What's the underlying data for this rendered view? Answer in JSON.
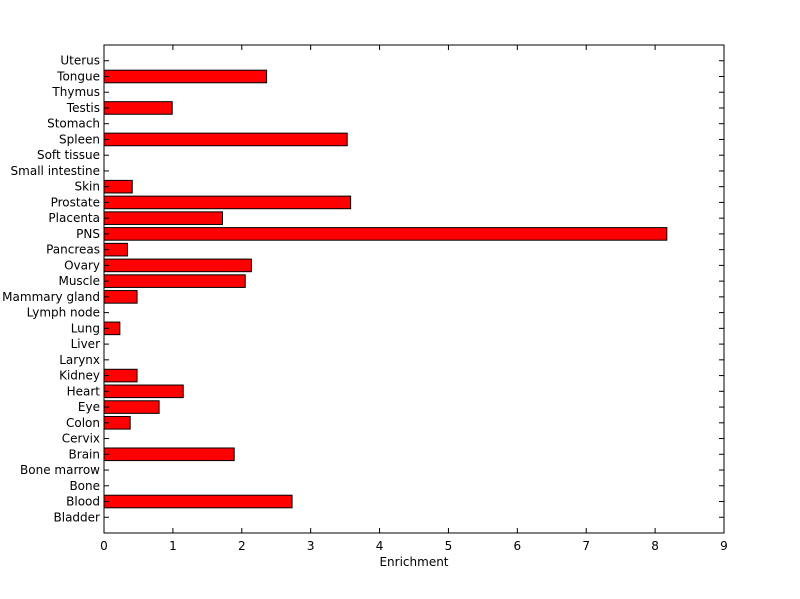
{
  "chart_data": {
    "type": "bar",
    "orientation": "horizontal",
    "categories": [
      "Bladder",
      "Blood",
      "Bone",
      "Bone marrow",
      "Brain",
      "Cervix",
      "Colon",
      "Eye",
      "Heart",
      "Kidney",
      "Larynx",
      "Liver",
      "Lung",
      "Lymph node",
      "Mammary gland",
      "Muscle",
      "Ovary",
      "Pancreas",
      "PNS",
      "Placenta",
      "Prostate",
      "Skin",
      "Small intestine",
      "Soft tissue",
      "Spleen",
      "Stomach",
      "Testis",
      "Thymus",
      "Tongue",
      "Uterus"
    ],
    "values": [
      0,
      2.73,
      0,
      0,
      1.89,
      0,
      0.38,
      0.8,
      1.15,
      0.48,
      0,
      0,
      0.23,
      0,
      0.48,
      2.05,
      2.14,
      0.34,
      8.17,
      1.72,
      3.58,
      0.41,
      0,
      0,
      3.53,
      0,
      0.99,
      0,
      2.36,
      0
    ],
    "xlabel": "Enrichment",
    "ylabel": "",
    "xlim": [
      0,
      9
    ],
    "xticks": [
      "0",
      "1",
      "2",
      "3",
      "4",
      "5",
      "6",
      "7",
      "8",
      "9"
    ],
    "grid": false,
    "colors": {
      "bar_fill": "#ff0000",
      "bar_edge": "#000000",
      "axis": "#000000",
      "background": "#ffffff"
    }
  }
}
